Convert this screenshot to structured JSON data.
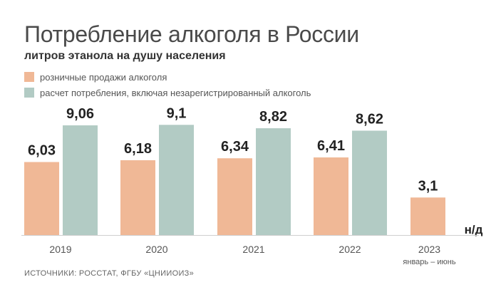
{
  "chart_data": {
    "type": "bar",
    "title": "Потребление алкоголя в России",
    "subtitle": "литров этанола на душу населения",
    "categories": [
      "2019",
      "2020",
      "2021",
      "2022",
      "2023"
    ],
    "category_sublabels": [
      "",
      "",
      "",
      "",
      "январь – июнь"
    ],
    "series": [
      {
        "name": "розничные продажи алкоголя",
        "color": "#f0b896",
        "values": [
          6.03,
          6.18,
          6.34,
          6.41,
          3.1
        ],
        "labels": [
          "6,03",
          "6,18",
          "6,34",
          "6,41",
          "3,1"
        ]
      },
      {
        "name": "расчет потребления, включая незарегистрированный алкоголь",
        "color": "#b2cbc4",
        "values": [
          9.06,
          9.1,
          8.82,
          8.62,
          null
        ],
        "labels": [
          "9,06",
          "9,1",
          "8,82",
          "8,62",
          "н/д"
        ]
      }
    ],
    "ylim": [
      0,
      10
    ],
    "grid": false,
    "legend": "top-left"
  },
  "source": "ИСТОЧНИКИ: РОССТАТ, ФГБУ «ЦНИИОИЗ»"
}
